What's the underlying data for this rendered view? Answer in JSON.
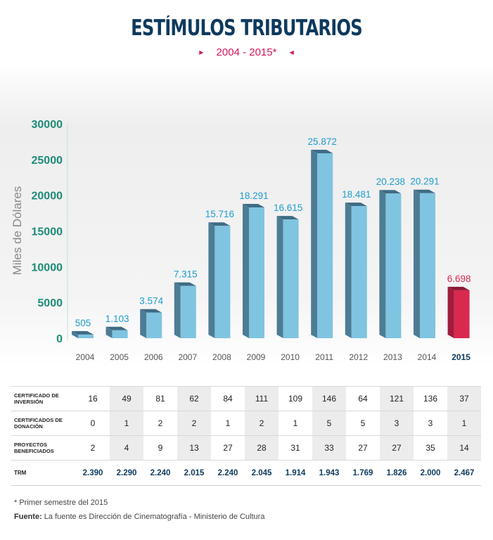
{
  "header": {
    "title": "ESTÍMULOS TRIBUTARIOS",
    "subtitle": "2004 - 2015*"
  },
  "colors": {
    "title": "#0e3a5e",
    "accent": "#d6145c",
    "axis_ticks": "#1e8c78",
    "bar": "#7fc4e0",
    "bar_side": "#4d7c95",
    "bar_top": "#3f6b84",
    "highlight_bar": "#d9294f",
    "value_label": "#1e9ccf"
  },
  "chart_data": {
    "type": "bar",
    "categories": [
      "2004",
      "2005",
      "2006",
      "2007",
      "2008",
      "2009",
      "2010",
      "2011",
      "2012",
      "2013",
      "2014",
      "2015"
    ],
    "values": [
      505,
      1103,
      3574,
      7315,
      15716,
      18291,
      16615,
      25872,
      18481,
      20238,
      20291,
      6698
    ],
    "value_labels": [
      "505",
      "1.103",
      "3.574",
      "7.315",
      "15.716",
      "18.291",
      "16.615",
      "25.872",
      "18.481",
      "20.238",
      "20.291",
      "6.698"
    ],
    "highlight_index": 11,
    "ylabel": "Miles de Dólares",
    "ylim": [
      0,
      30000
    ],
    "yticks": [
      0,
      5000,
      10000,
      15000,
      20000,
      25000,
      30000
    ],
    "ytick_labels": [
      "0",
      "5000",
      "10000",
      "15000",
      "20000",
      "25000",
      "30000"
    ],
    "grid": false
  },
  "table": {
    "rows": [
      {
        "label": "CERTIFICADO DE INVERSIÓN",
        "values": [
          "16",
          "49",
          "81",
          "62",
          "84",
          "111",
          "109",
          "146",
          "64",
          "121",
          "136",
          "37"
        ]
      },
      {
        "label": "CERTIFICADOS DE DONACIÓN",
        "values": [
          "0",
          "1",
          "2",
          "2",
          "1",
          "2",
          "1",
          "5",
          "5",
          "3",
          "3",
          "1"
        ]
      },
      {
        "label": "PROYECTOS BENEFICIADOS",
        "values": [
          "2",
          "4",
          "9",
          "13",
          "27",
          "28",
          "31",
          "33",
          "27",
          "27",
          "35",
          "14"
        ]
      },
      {
        "label": "TRM",
        "values": [
          "2.390",
          "2.290",
          "2.240",
          "2.015",
          "2.240",
          "2.045",
          "1.914",
          "1.943",
          "1.769",
          "1.826",
          "2.000",
          "2.467"
        ]
      }
    ]
  },
  "footer": {
    "note": "* Primer semestre del 2015",
    "source_label": "Fuente:",
    "source_text": "La fuente es Dirección de Cinematografía - Ministerio de Cultura"
  }
}
